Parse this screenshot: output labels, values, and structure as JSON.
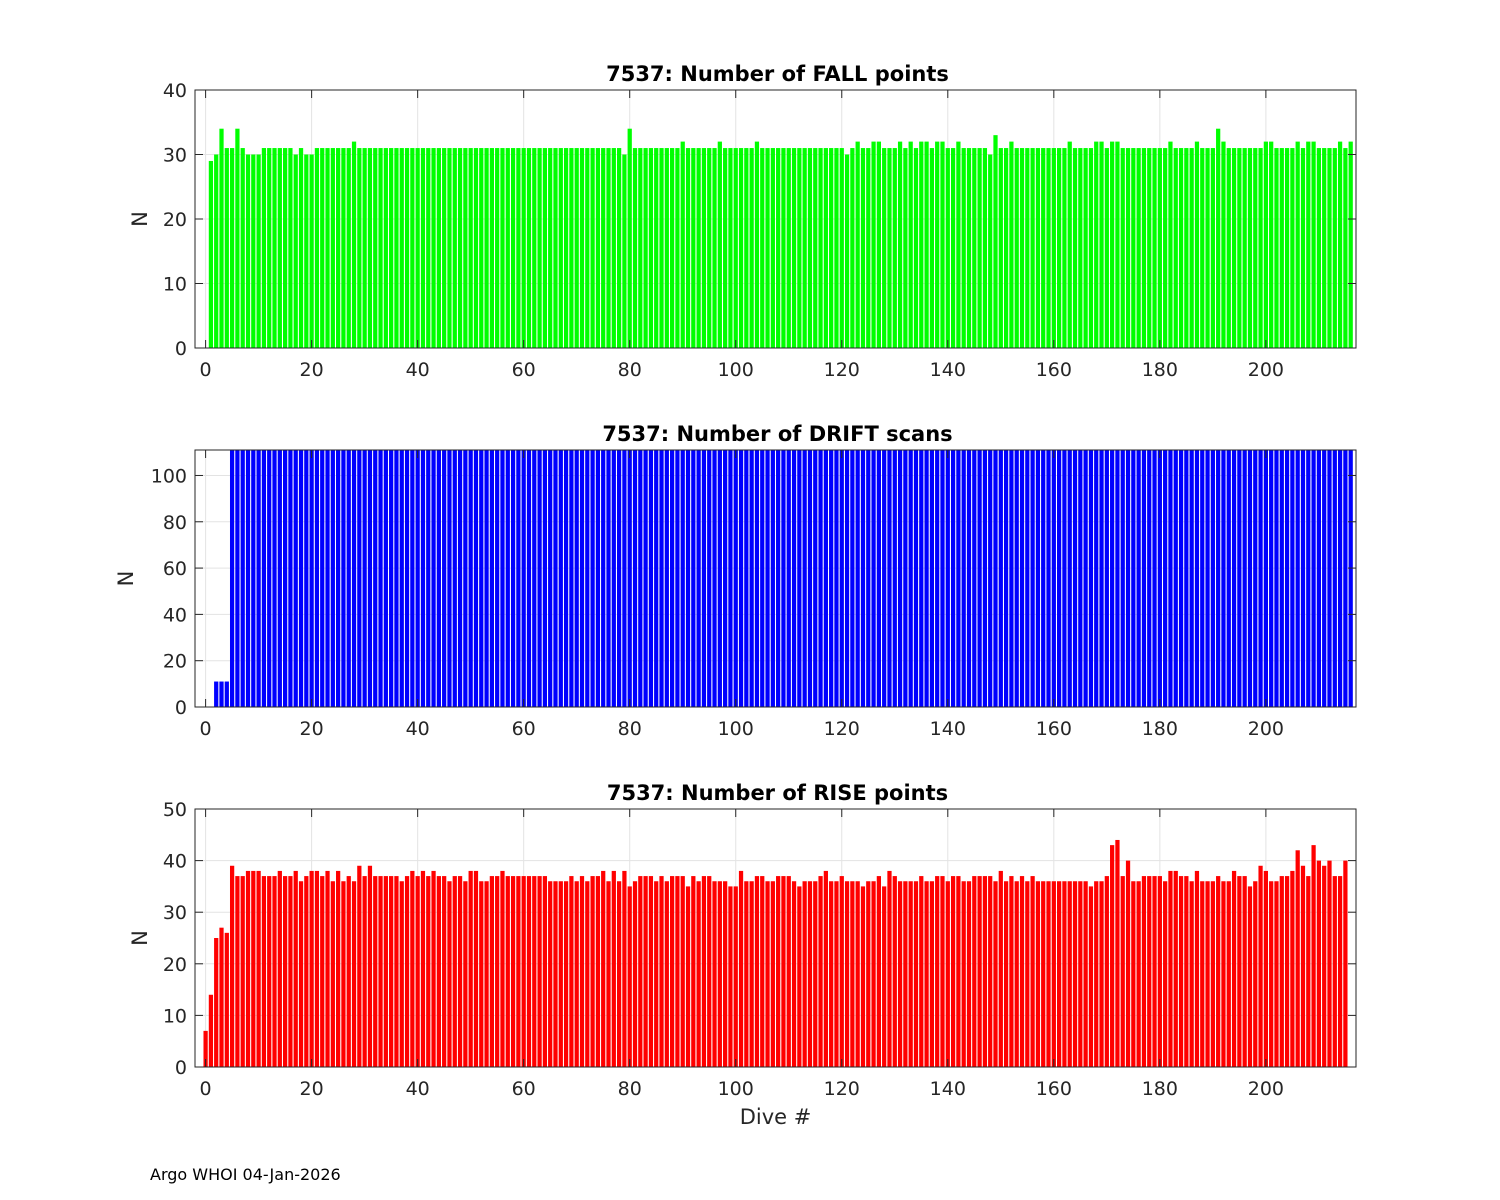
{
  "footer": "Argo WHOI 04-Jan-2026",
  "chart_data": [
    {
      "type": "bar",
      "title": "7537: Number of FALL points",
      "ylabel": "N",
      "xlabel": "",
      "color": "#00ff00",
      "xlim": [
        -2,
        217
      ],
      "ylim": [
        0,
        40
      ],
      "xticks": [
        0,
        20,
        40,
        60,
        80,
        100,
        120,
        140,
        160,
        180,
        200
      ],
      "yticks": [
        0,
        10,
        20,
        30,
        40
      ],
      "x_start": 1,
      "values": [
        29,
        30,
        34,
        31,
        31,
        34,
        31,
        30,
        30,
        30,
        31,
        31,
        31,
        31,
        31,
        31,
        30,
        31,
        30,
        30,
        31,
        31,
        31,
        31,
        31,
        31,
        31,
        32,
        31,
        31,
        31,
        31,
        31,
        31,
        31,
        31,
        31,
        31,
        31,
        31,
        31,
        31,
        31,
        31,
        31,
        31,
        31,
        31,
        31,
        31,
        31,
        31,
        31,
        31,
        31,
        31,
        31,
        31,
        31,
        31,
        31,
        31,
        31,
        31,
        31,
        31,
        31,
        31,
        31,
        31,
        31,
        31,
        31,
        31,
        31,
        31,
        31,
        31,
        30,
        34,
        31,
        31,
        31,
        31,
        31,
        31,
        31,
        31,
        31,
        32,
        31,
        31,
        31,
        31,
        31,
        31,
        32,
        31,
        31,
        31,
        31,
        31,
        31,
        32,
        31,
        31,
        31,
        31,
        31,
        31,
        31,
        31,
        31,
        31,
        31,
        31,
        31,
        31,
        31,
        31,
        30,
        31,
        32,
        31,
        31,
        32,
        32,
        31,
        31,
        31,
        32,
        31,
        32,
        31,
        32,
        32,
        31,
        32,
        32,
        31,
        31,
        32,
        31,
        31,
        31,
        31,
        31,
        30,
        33,
        31,
        31,
        32,
        31,
        31,
        31,
        31,
        31,
        31,
        31,
        31,
        31,
        31,
        32,
        31,
        31,
        31,
        31,
        32,
        32,
        31,
        32,
        32,
        31,
        31,
        31,
        31,
        31,
        31,
        31,
        31,
        31,
        32,
        31,
        31,
        31,
        31,
        32,
        31,
        31,
        31,
        34,
        32,
        31,
        31,
        31,
        31,
        31,
        31,
        31,
        32,
        32,
        31,
        31,
        31,
        31,
        32,
        31,
        32,
        32,
        31,
        31,
        31,
        31,
        32,
        31,
        32
      ]
    },
    {
      "type": "bar",
      "title": "7537: Number of DRIFT scans",
      "ylabel": "N",
      "xlabel": "",
      "color": "#0000ff",
      "xlim": [
        -2,
        217
      ],
      "ylim": [
        0,
        111
      ],
      "xticks": [
        0,
        20,
        40,
        60,
        80,
        100,
        120,
        140,
        160,
        180,
        200
      ],
      "yticks": [
        0,
        20,
        40,
        60,
        80,
        100
      ],
      "x_start": 1,
      "values": [
        0,
        11,
        11,
        11,
        111,
        111,
        111,
        111,
        111,
        111,
        111,
        111,
        111,
        111,
        111,
        111,
        111,
        111,
        111,
        111,
        111,
        111,
        111,
        111,
        111,
        111,
        111,
        111,
        111,
        111,
        111,
        111,
        111,
        111,
        111,
        111,
        111,
        111,
        111,
        111,
        111,
        111,
        111,
        111,
        111,
        111,
        111,
        111,
        111,
        111,
        111,
        111,
        111,
        111,
        111,
        111,
        111,
        111,
        111,
        111,
        111,
        111,
        111,
        111,
        111,
        111,
        111,
        111,
        111,
        111,
        111,
        111,
        111,
        111,
        111,
        111,
        111,
        111,
        111,
        111,
        111,
        111,
        111,
        111,
        111,
        111,
        111,
        111,
        111,
        111,
        111,
        111,
        111,
        111,
        111,
        111,
        111,
        111,
        111,
        111,
        111,
        111,
        111,
        111,
        111,
        111,
        111,
        111,
        111,
        111,
        111,
        111,
        111,
        111,
        111,
        111,
        111,
        111,
        111,
        111,
        111,
        111,
        111,
        111,
        111,
        111,
        111,
        111,
        111,
        111,
        111,
        111,
        111,
        111,
        111,
        111,
        111,
        111,
        111,
        111,
        111,
        111,
        111,
        111,
        111,
        111,
        111,
        111,
        111,
        111,
        111,
        111,
        111,
        111,
        111,
        111,
        111,
        111,
        111,
        111,
        111,
        111,
        111,
        111,
        111,
        111,
        111,
        111,
        111,
        111,
        111,
        111,
        111,
        111,
        111,
        111,
        111,
        111,
        111,
        111,
        111,
        111,
        111,
        111,
        111,
        111,
        111,
        111,
        111,
        111,
        111,
        111,
        111,
        111,
        111,
        111,
        111,
        111,
        111,
        111,
        111,
        111,
        111,
        111,
        111,
        111,
        111,
        111,
        111,
        111,
        111,
        111,
        111,
        111,
        111,
        111
      ]
    },
    {
      "type": "bar",
      "title": "7537: Number of RISE points",
      "ylabel": "N",
      "xlabel": "Dive #",
      "color": "#ff0000",
      "xlim": [
        -2,
        217
      ],
      "ylim": [
        0,
        50
      ],
      "xticks": [
        0,
        20,
        40,
        60,
        80,
        100,
        120,
        140,
        160,
        180,
        200
      ],
      "yticks": [
        0,
        10,
        20,
        30,
        40,
        50
      ],
      "x_start": 0,
      "values": [
        7,
        14,
        25,
        27,
        26,
        39,
        37,
        37,
        38,
        38,
        38,
        37,
        37,
        37,
        38,
        37,
        37,
        38,
        36,
        37,
        38,
        38,
        37,
        38,
        36,
        38,
        36,
        37,
        36,
        39,
        37,
        39,
        37,
        37,
        37,
        37,
        37,
        36,
        37,
        38,
        37,
        38,
        37,
        38,
        37,
        37,
        36,
        37,
        37,
        36,
        38,
        38,
        36,
        36,
        37,
        37,
        38,
        37,
        37,
        37,
        37,
        37,
        37,
        37,
        37,
        36,
        36,
        36,
        36,
        37,
        36,
        37,
        36,
        37,
        37,
        38,
        36,
        38,
        36,
        38,
        35,
        36,
        37,
        37,
        37,
        36,
        37,
        36,
        37,
        37,
        37,
        35,
        37,
        36,
        37,
        37,
        36,
        36,
        36,
        35,
        35,
        38,
        36,
        36,
        37,
        37,
        36,
        36,
        37,
        37,
        37,
        36,
        35,
        36,
        36,
        36,
        37,
        38,
        36,
        36,
        37,
        36,
        36,
        36,
        35,
        36,
        36,
        37,
        35,
        38,
        37,
        36,
        36,
        36,
        36,
        37,
        36,
        36,
        37,
        37,
        36,
        37,
        37,
        36,
        36,
        37,
        37,
        37,
        37,
        36,
        38,
        36,
        37,
        36,
        37,
        36,
        37,
        36,
        36,
        36,
        36,
        36,
        36,
        36,
        36,
        36,
        36,
        35,
        36,
        36,
        37,
        43,
        44,
        37,
        40,
        36,
        36,
        37,
        37,
        37,
        37,
        36,
        38,
        38,
        37,
        37,
        36,
        38,
        36,
        36,
        36,
        37,
        36,
        36,
        38,
        37,
        37,
        35,
        36,
        39,
        38,
        36,
        36,
        37,
        37,
        38,
        42,
        39,
        37,
        43,
        40,
        39,
        40,
        37,
        37,
        40
      ]
    }
  ]
}
